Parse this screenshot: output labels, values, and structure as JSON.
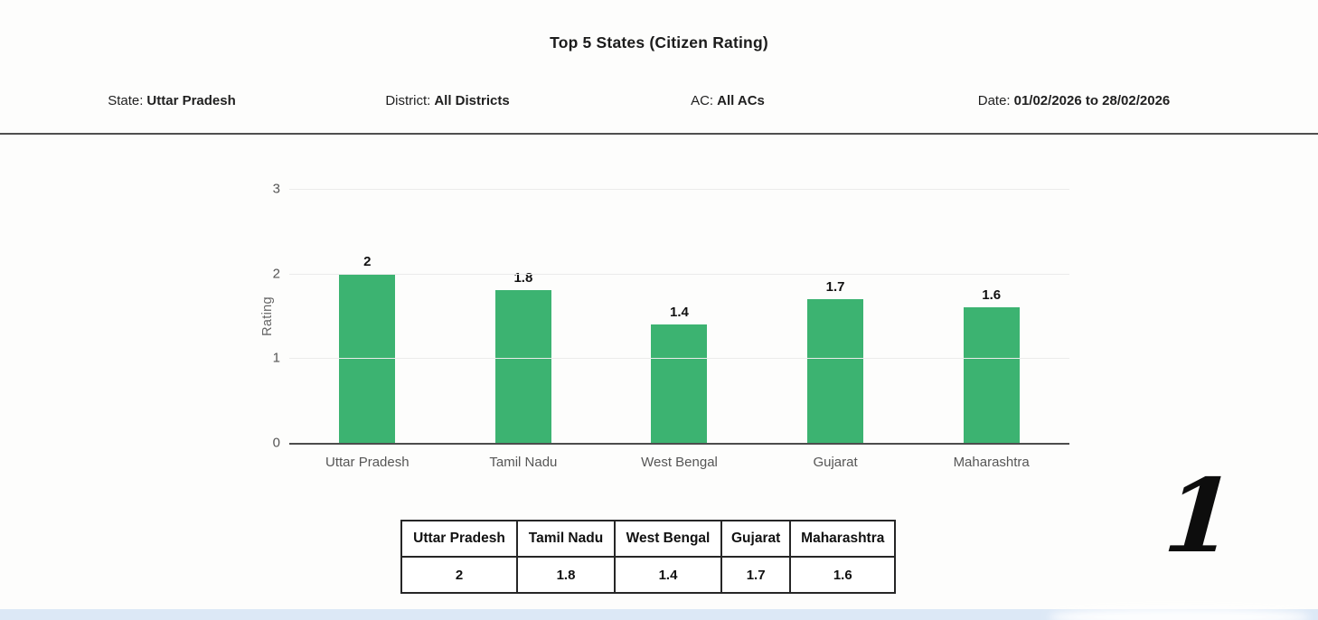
{
  "page": {
    "title": "Top 5 States (Citizen Rating)",
    "annotation": "1"
  },
  "filters": [
    {
      "label": "State:",
      "value": "Uttar Pradesh"
    },
    {
      "label": "District:",
      "value": "All Districts"
    },
    {
      "label": "AC:",
      "value": "All ACs"
    },
    {
      "label": "Date:",
      "value": "01/02/2026 to 28/02/2026"
    }
  ],
  "chart_data": {
    "type": "bar",
    "title": "Top 5 States (Citizen Rating)",
    "categories": [
      "Uttar Pradesh",
      "Tamil Nadu",
      "West Bengal",
      "Gujarat",
      "Maharashtra"
    ],
    "values": [
      2,
      1.8,
      1.4,
      1.7,
      1.6
    ],
    "value_labels": [
      "2",
      "1.8",
      "1.4",
      "1.7",
      "1.6"
    ],
    "xlabel": "",
    "ylabel": "Rating",
    "ylim": [
      0,
      3
    ],
    "yticks": [
      0,
      1,
      2,
      3
    ],
    "grid": true,
    "legend": false,
    "bar_color": "#3cb371"
  },
  "table": {
    "headers": [
      "Uttar Pradesh",
      "Tamil Nadu",
      "West Bengal",
      "Gujarat",
      "Maharashtra"
    ],
    "values": [
      "2",
      "1.8",
      "1.4",
      "1.7",
      "1.6"
    ]
  },
  "colors": {
    "bar_green": "#3cb371",
    "axis_text": "#555555",
    "bottom_bar_blue": "#dce8f6"
  }
}
